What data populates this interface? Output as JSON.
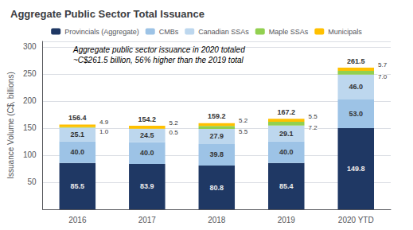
{
  "chart_data": {
    "type": "bar",
    "title": "Aggregate Public Sector Total Issuance",
    "ylabel": "Issuance Volume (C$, billions)",
    "annotation": "Aggregate public sector issuance in 2020 totaled\n~C$261.5 billion, 56% higher than the 2019 total",
    "categories": [
      "2016",
      "2017",
      "2018",
      "2019",
      "2020 YTD"
    ],
    "series": [
      {
        "name": "Provincials (Aggregate)",
        "color": "#1F3864",
        "values": [
          85.5,
          83.9,
          80.8,
          85.4,
          149.8
        ],
        "value_labels": [
          "85.5",
          "83.9",
          "80.8",
          "85.4",
          "149.8"
        ]
      },
      {
        "name": "CMBs",
        "color": "#9DC3E6",
        "values": [
          40.0,
          40.0,
          39.8,
          40.0,
          53.0
        ],
        "value_labels": [
          "40.0",
          "40.0",
          "39.8",
          "40.0",
          "53.0"
        ]
      },
      {
        "name": "Canadian SSAs",
        "color": "#BDD7EE",
        "values": [
          25.1,
          24.5,
          27.9,
          29.1,
          46.0
        ],
        "value_labels": [
          "25.1",
          "24.5",
          "27.9",
          "29.1",
          "46.0"
        ]
      },
      {
        "name": "Maple SSAs",
        "color": "#92D050",
        "values": [
          1.0,
          0.5,
          5.5,
          7.2,
          7.0
        ],
        "value_labels": [
          "1.0",
          "0.5",
          "5.5",
          "7.2",
          "7.0"
        ]
      },
      {
        "name": "Municipals",
        "color": "#FFC000",
        "values": [
          4.9,
          5.2,
          5.2,
          5.5,
          5.7
        ],
        "value_labels": [
          "4.9",
          "5.2",
          "5.2",
          "5.5",
          "5.7"
        ]
      }
    ],
    "totals": [
      156.4,
      154.2,
      159.2,
      167.2,
      261.5
    ],
    "stacked": true,
    "data_labels": true,
    "ylim": [
      0,
      310
    ],
    "yticks": [
      50,
      100,
      150,
      200,
      250,
      300
    ],
    "grid": true,
    "legend": "top"
  }
}
